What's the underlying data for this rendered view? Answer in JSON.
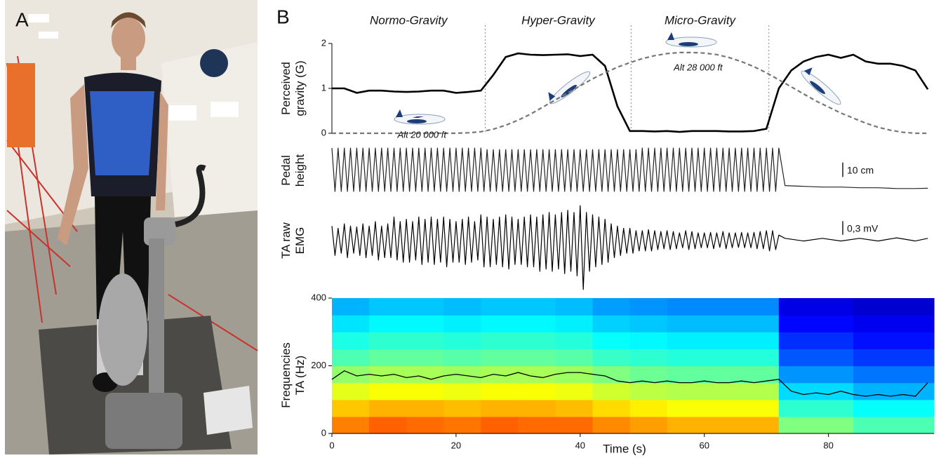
{
  "panel_a": {
    "label": "A"
  },
  "panel_b": {
    "label": "B"
  },
  "chart_data": [
    {
      "type": "line",
      "ylabel": "Perceived gravity (G)",
      "xlim": [
        0,
        97
      ],
      "ylim": [
        0,
        2
      ],
      "yticks": [
        0,
        1,
        2
      ],
      "y2lim": [
        20000,
        28900
      ],
      "phases": [
        {
          "label": "Normo-Gravity",
          "start": 0,
          "end": 24.7
        },
        {
          "label": "Hyper-Gravity",
          "start": 24.7,
          "end": 48.2
        },
        {
          "label": "Micro-Gravity",
          "start": 48.2,
          "end": 70.4
        }
      ],
      "x": [
        0,
        2,
        4,
        6,
        8,
        10,
        12,
        14,
        16,
        18,
        20,
        22,
        24,
        26,
        28,
        30,
        32,
        34,
        36,
        38,
        40,
        42,
        44,
        46,
        48,
        50,
        52,
        54,
        56,
        58,
        60,
        62,
        64,
        66,
        68,
        70,
        72,
        74,
        76,
        78,
        80,
        82,
        84,
        86,
        88,
        90,
        92,
        94,
        96
      ],
      "series": [
        {
          "color": "#000000",
          "values": [
            1.0,
            1.0,
            0.9,
            0.95,
            0.95,
            0.93,
            0.92,
            0.93,
            0.95,
            0.95,
            0.9,
            0.92,
            0.95,
            1.3,
            1.7,
            1.78,
            1.75,
            1.74,
            1.75,
            1.76,
            1.72,
            1.75,
            1.5,
            0.6,
            0.05,
            0.05,
            0.04,
            0.05,
            0.03,
            0.05,
            0.05,
            0.05,
            0.04,
            0.04,
            0.05,
            0.1,
            1.0,
            1.4,
            1.6,
            1.7,
            1.75,
            1.68,
            1.75,
            1.6,
            1.55,
            1.55,
            1.5,
            1.4,
            0.98
          ]
        },
        {
          "color": "#777777",
          "dash": true,
          "axis": "y2",
          "values": [
            20000,
            20000,
            20000,
            20000,
            20000,
            20000,
            20000,
            20000,
            20000,
            20000,
            20000,
            20050,
            20150,
            20400,
            20800,
            21300,
            21900,
            22600,
            23300,
            24000,
            24700,
            25400,
            26000,
            26550,
            27000,
            27400,
            27700,
            27900,
            28000,
            28000,
            27950,
            27800,
            27500,
            27100,
            26600,
            26000,
            25300,
            24600,
            23900,
            23200,
            22600,
            22000,
            21500,
            21000,
            20600,
            20300,
            20100,
            20000,
            20000
          ]
        }
      ],
      "annotations": [
        {
          "text": "Alt 20 000 ft",
          "x": 14.5,
          "y": 20000,
          "axis": "y2"
        },
        {
          "text": "Alt 28 000 ft",
          "x": 59,
          "y": 28000,
          "axis": "y2"
        }
      ]
    },
    {
      "type": "signals",
      "xlim": [
        0,
        97
      ],
      "x": [
        0,
        0.5,
        1,
        1.5,
        2,
        2.5,
        3,
        3.5,
        4,
        4.5,
        5,
        5.5,
        6,
        6.5,
        7,
        7.5,
        8,
        8.5,
        9,
        9.5,
        10,
        10.5,
        11,
        11.5,
        12,
        12.5,
        13,
        13.5,
        14,
        14.5,
        15,
        15.5,
        16,
        16.5,
        17,
        17.5,
        18,
        18.5,
        19,
        19.5,
        20,
        20.5,
        21,
        21.5,
        22,
        22.5,
        23,
        23.5,
        24,
        24.5,
        25,
        25.5,
        26,
        26.5,
        27,
        27.5,
        28,
        28.5,
        29,
        29.5,
        30,
        30.5,
        31,
        31.5,
        32,
        32.5,
        33,
        33.5,
        34,
        34.5,
        35,
        35.5,
        36,
        36.5,
        37,
        37.5,
        38,
        38.5,
        39,
        39.5,
        40,
        40.5,
        41,
        41.5,
        42,
        42.5,
        43,
        43.5,
        44,
        44.5,
        45,
        45.5,
        46,
        46.5,
        47,
        47.5,
        48,
        48.5,
        49,
        49.5,
        50,
        50.5,
        51,
        51.5,
        52,
        52.5,
        53,
        53.5,
        54,
        54.5,
        55,
        55.5,
        56,
        56.5,
        57,
        57.5,
        58,
        58.5,
        59,
        59.5,
        60,
        60.5,
        61,
        61.5,
        62,
        62.5,
        63,
        63.5,
        64,
        64.5,
        65,
        65.5,
        66,
        66.5,
        67,
        67.5,
        68,
        68.5,
        69,
        69.5,
        70,
        70.5,
        71,
        71.5,
        72,
        73,
        76,
        79,
        82,
        85,
        88,
        91,
        94,
        96
      ],
      "series": [
        {
          "name": "Pedal height",
          "color": "#222222",
          "ylim": [
            -17,
            17
          ],
          "scale_bar": {
            "value": 10,
            "label": "10 cm"
          },
          "values": [
            15,
            -15,
            15,
            -15,
            15,
            -15,
            15,
            -15,
            15,
            -15,
            15,
            -15,
            15,
            -15,
            15,
            -15,
            15,
            -15,
            15,
            -15,
            15,
            -15,
            15,
            -15,
            15,
            -15,
            15,
            -15,
            15,
            -15,
            15,
            -15,
            15,
            -15,
            15,
            -15,
            15,
            -15,
            15,
            -15,
            15,
            -15,
            15,
            -15,
            15,
            -15,
            15,
            -15,
            15,
            -15,
            14,
            -15,
            14,
            -15,
            14,
            -15,
            14,
            -15,
            14,
            -15,
            14,
            -15,
            14,
            -15,
            14,
            -15,
            14,
            -15,
            14,
            -15,
            14,
            -15,
            14,
            -15,
            14,
            -15,
            14,
            -15,
            14,
            -15,
            14,
            -15,
            14,
            -15,
            14,
            -15,
            14,
            -15,
            14,
            -15,
            14,
            -15,
            14,
            -15,
            14,
            -15,
            14,
            -15,
            14,
            -15,
            15,
            -15,
            15,
            -15,
            15,
            -15,
            15,
            -15,
            15,
            -15,
            15,
            -15,
            15,
            -15,
            15,
            -15,
            15,
            -15,
            15,
            -15,
            15,
            -15,
            15,
            -15,
            15,
            -15,
            15,
            -15,
            15,
            -15,
            15,
            -15,
            15,
            -15,
            15,
            -15,
            15,
            -15,
            15,
            -15,
            15,
            -15,
            15,
            -15,
            15,
            -11,
            -11.5,
            -12,
            -12,
            -12.5,
            -12.5,
            -13,
            -13,
            -12.8
          ]
        },
        {
          "name": "TA raw EMG",
          "color": "#000000",
          "ylim": [
            -1.15,
            0.8
          ],
          "scale_bar": {
            "value": 0.3,
            "label": "0,3 mV"
          },
          "values": [
            0.3,
            -0.35,
            0.25,
            -0.3,
            0.35,
            -0.4,
            0.3,
            -0.3,
            0.28,
            -0.35,
            0.35,
            -0.4,
            0.3,
            -0.35,
            0.4,
            -0.45,
            0.3,
            -0.4,
            0.35,
            -0.4,
            0.5,
            -0.45,
            0.4,
            -0.5,
            0.45,
            -0.5,
            0.4,
            -0.45,
            0.5,
            -0.55,
            0.45,
            -0.5,
            0.5,
            -0.55,
            0.45,
            -0.5,
            0.5,
            -0.6,
            0.45,
            -0.5,
            0.4,
            -0.5,
            0.45,
            -0.55,
            0.5,
            -0.5,
            0.4,
            -0.45,
            0.55,
            -0.6,
            0.5,
            -0.6,
            0.45,
            -0.55,
            0.5,
            -0.6,
            0.55,
            -0.65,
            0.5,
            -0.55,
            0.45,
            -0.55,
            0.5,
            -0.6,
            0.55,
            -0.6,
            0.5,
            -0.7,
            0.55,
            -0.65,
            0.6,
            -0.7,
            0.55,
            -0.65,
            0.6,
            -0.75,
            0.65,
            -0.7,
            0.6,
            -0.8,
            0.75,
            -1.1,
            0.6,
            -0.7,
            0.55,
            -0.6,
            0.5,
            -0.55,
            0.45,
            -0.5,
            0.35,
            -0.4,
            0.3,
            -0.35,
            0.25,
            -0.3,
            0.25,
            -0.3,
            0.2,
            -0.25,
            0.2,
            -0.25,
            0.22,
            -0.25,
            0.2,
            -0.22,
            0.18,
            -0.2,
            0.2,
            -0.22,
            0.18,
            -0.2,
            0.15,
            -0.18,
            0.2,
            -0.22,
            0.18,
            -0.2,
            0.15,
            -0.18,
            0.15,
            -0.18,
            0.16,
            -0.2,
            0.15,
            -0.17,
            0.18,
            -0.2,
            0.15,
            -0.18,
            0.15,
            -0.17,
            0.16,
            -0.18,
            0.15,
            -0.18,
            0.16,
            -0.2,
            0.18,
            -0.2,
            0.2,
            -0.25,
            0.2,
            -0.22,
            0.1,
            0.03,
            -0.03,
            0.03,
            -0.03,
            0.03,
            -0.03,
            0.04,
            -0.03,
            0.03
          ]
        }
      ]
    },
    {
      "type": "heatmap",
      "ylabel": "Frequencies TA (Hz)",
      "xlabel": "Time (s)",
      "colormap": "jet",
      "xlim": [
        0,
        97
      ],
      "ylim": [
        0,
        400
      ],
      "xticks": [
        0,
        20,
        40,
        60,
        80
      ],
      "yticks": [
        0,
        200,
        400
      ],
      "x_bins": [
        0,
        6,
        12,
        18,
        24,
        30,
        36,
        42,
        48,
        54,
        60,
        66,
        72,
        84,
        97
      ],
      "y_bins": [
        0,
        50,
        100,
        150,
        200,
        250,
        300,
        350,
        400
      ],
      "values": [
        [
          0.75,
          0.78,
          0.77,
          0.76,
          0.78,
          0.77,
          0.77,
          0.74,
          0.72,
          0.7,
          0.7,
          0.7,
          0.5,
          0.45
        ],
        [
          0.68,
          0.7,
          0.7,
          0.69,
          0.7,
          0.7,
          0.69,
          0.66,
          0.64,
          0.62,
          0.62,
          0.62,
          0.42,
          0.38
        ],
        [
          0.6,
          0.62,
          0.62,
          0.61,
          0.62,
          0.62,
          0.61,
          0.58,
          0.56,
          0.55,
          0.55,
          0.55,
          0.34,
          0.3
        ],
        [
          0.52,
          0.54,
          0.54,
          0.53,
          0.54,
          0.54,
          0.53,
          0.5,
          0.48,
          0.47,
          0.47,
          0.47,
          0.27,
          0.24
        ],
        [
          0.45,
          0.47,
          0.47,
          0.46,
          0.47,
          0.47,
          0.46,
          0.43,
          0.42,
          0.41,
          0.41,
          0.41,
          0.21,
          0.18
        ],
        [
          0.4,
          0.42,
          0.42,
          0.41,
          0.42,
          0.42,
          0.41,
          0.38,
          0.37,
          0.36,
          0.36,
          0.36,
          0.17,
          0.14
        ],
        [
          0.35,
          0.37,
          0.37,
          0.36,
          0.37,
          0.37,
          0.36,
          0.33,
          0.32,
          0.31,
          0.31,
          0.31,
          0.13,
          0.11
        ],
        [
          0.3,
          0.32,
          0.32,
          0.31,
          0.32,
          0.32,
          0.31,
          0.28,
          0.27,
          0.26,
          0.26,
          0.26,
          0.1,
          0.08
        ]
      ],
      "series": [
        {
          "color": "#000000",
          "x": [
            0,
            2,
            4,
            6,
            8,
            10,
            12,
            14,
            16,
            18,
            20,
            22,
            24,
            26,
            28,
            30,
            32,
            34,
            36,
            38,
            40,
            42,
            44,
            46,
            48,
            50,
            52,
            54,
            56,
            58,
            60,
            62,
            64,
            66,
            68,
            70,
            72,
            74,
            76,
            78,
            80,
            82,
            84,
            86,
            88,
            90,
            92,
            94,
            96
          ],
          "values": [
            160,
            185,
            170,
            175,
            170,
            175,
            165,
            170,
            160,
            170,
            175,
            170,
            165,
            175,
            170,
            180,
            170,
            165,
            175,
            180,
            180,
            175,
            170,
            155,
            150,
            155,
            150,
            155,
            150,
            150,
            155,
            150,
            150,
            155,
            150,
            155,
            160,
            125,
            115,
            120,
            115,
            125,
            115,
            110,
            115,
            110,
            115,
            110,
            150
          ]
        }
      ]
    }
  ]
}
